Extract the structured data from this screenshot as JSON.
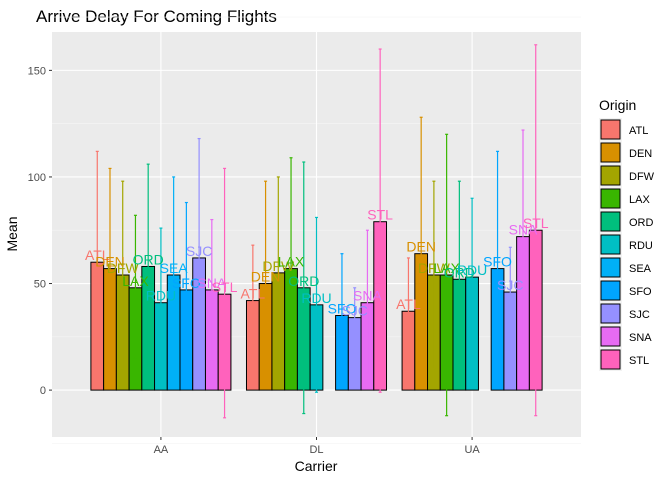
{
  "chart_data": {
    "type": "bar",
    "title": "Arrive Delay For Coming Flights",
    "xlabel": "Carrier",
    "ylabel": "Mean",
    "legend_title": "Origin",
    "legend_position": "right",
    "grid": true,
    "ylim": [
      -22,
      168
    ],
    "yticks": [
      0,
      50,
      100,
      150
    ],
    "categories": [
      "AA",
      "DL",
      "UA"
    ],
    "origins": [
      "ATL",
      "DEN",
      "DFW",
      "LAX",
      "ORD",
      "RDU",
      "SEA",
      "SFO",
      "SJC",
      "SNA",
      "STL"
    ],
    "colors": {
      "ATL": "#F8766D",
      "DEN": "#D89000",
      "DFW": "#A3A500",
      "LAX": "#39B600",
      "ORD": "#00BF7D",
      "RDU": "#00BFC4",
      "SEA": "#00B0F6",
      "SFO": "#00A5FF",
      "SJC": "#9590FF",
      "SNA": "#E76BF3",
      "STL": "#FF62BC"
    },
    "groups": [
      {
        "carrier": "AA",
        "bars": [
          {
            "origin": "ATL",
            "mean": 60,
            "err_low": 9,
            "err_high": 112
          },
          {
            "origin": "DEN",
            "mean": 57,
            "err_low": 10,
            "err_high": 104
          },
          {
            "origin": "DFW",
            "mean": 54,
            "err_low": 10,
            "err_high": 98
          },
          {
            "origin": "LAX",
            "mean": 48,
            "err_low": 15,
            "err_high": 82
          },
          {
            "origin": "ORD",
            "mean": 58,
            "err_low": 10,
            "err_high": 106
          },
          {
            "origin": "RDU",
            "mean": 41,
            "err_low": 6,
            "err_high": 76
          },
          {
            "origin": "SEA",
            "mean": 54,
            "err_low": 8,
            "err_high": 100
          },
          {
            "origin": "SFO",
            "mean": 47,
            "err_low": 6,
            "err_high": 88
          },
          {
            "origin": "SJC",
            "mean": 62,
            "err_low": 6,
            "err_high": 118
          },
          {
            "origin": "SNA",
            "mean": 47,
            "err_low": 14,
            "err_high": 80
          },
          {
            "origin": "STL",
            "mean": 45,
            "err_low": -13,
            "err_high": 104
          }
        ]
      },
      {
        "carrier": "DL",
        "bars": [
          {
            "origin": "ATL",
            "mean": 42,
            "err_low": 16,
            "err_high": 68
          },
          {
            "origin": "DEN",
            "mean": 50,
            "err_low": 2,
            "err_high": 98
          },
          {
            "origin": "DFW",
            "mean": 55,
            "err_low": 1,
            "err_high": 100
          },
          {
            "origin": "LAX",
            "mean": 57,
            "err_low": 5,
            "err_high": 109
          },
          {
            "origin": "ORD",
            "mean": 48,
            "err_low": -11,
            "err_high": 107
          },
          {
            "origin": "RDU",
            "mean": 40,
            "err_low": -1,
            "err_high": 81
          },
          {
            "origin": "SFO",
            "mean": 35,
            "err_low": 6,
            "err_high": 64
          },
          {
            "origin": "SJC",
            "mean": 34,
            "err_low": 20,
            "err_high": 48
          },
          {
            "origin": "SNA",
            "mean": 41,
            "err_low": 8,
            "err_high": 75
          },
          {
            "origin": "STL",
            "mean": 79,
            "err_low": -1,
            "err_high": 160
          }
        ]
      },
      {
        "carrier": "UA",
        "bars": [
          {
            "origin": "ATL",
            "mean": 37,
            "err_low": 12,
            "err_high": 62
          },
          {
            "origin": "DEN",
            "mean": 64,
            "err_low": 1,
            "err_high": 128
          },
          {
            "origin": "DFW",
            "mean": 54,
            "err_low": 10,
            "err_high": 98
          },
          {
            "origin": "LAX",
            "mean": 54,
            "err_low": -12,
            "err_high": 120
          },
          {
            "origin": "ORD",
            "mean": 52,
            "err_low": 5,
            "err_high": 98
          },
          {
            "origin": "RDU",
            "mean": 53,
            "err_low": 16,
            "err_high": 90
          },
          {
            "origin": "SFO",
            "mean": 57,
            "err_low": 2,
            "err_high": 112
          },
          {
            "origin": "SJC",
            "mean": 46,
            "err_low": 25,
            "err_high": 67
          },
          {
            "origin": "SNA",
            "mean": 72,
            "err_low": 22,
            "err_high": 122
          },
          {
            "origin": "STL",
            "mean": 75,
            "err_low": -12,
            "err_high": 162
          }
        ]
      }
    ]
  }
}
